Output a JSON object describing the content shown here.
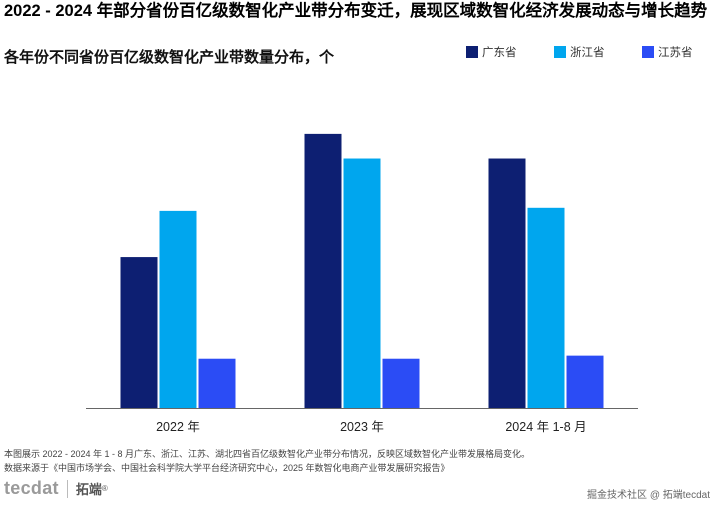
{
  "title": "2022 - 2024 年部分省份百亿级数智化产业带分布变迁，展现区域数智化经济发展动态与增长趋势",
  "subtitle": "各年份不同省份百亿级数智化产业带数量分布，个",
  "notes": {
    "line1": "本图展示 2022 - 2024 年 1 - 8 月广东、浙江、江苏、湖北四省百亿级数智化产业带分布情况，反映区域数智化产业带发展格局变化。",
    "line2": "数据来源于《中国市场学会、中国社会科学院大学平台经济研究中心，2025 年数智化电商产业带发展研究报告》"
  },
  "logo": {
    "text": "tecdat",
    "cn": "拓端",
    "reg": "®"
  },
  "watermark": "掘金技术社区 @ 拓端tecdat",
  "colors": {
    "guangdong": "#0d1f72",
    "zhejiang": "#00a6ee",
    "jiangsu": "#2b4cf5"
  },
  "chart_data": {
    "type": "bar",
    "categories": [
      "2022 年",
      "2023 年",
      "2024 年 1-8 月"
    ],
    "series": [
      {
        "name": "广东省",
        "values": [
          49,
          89,
          81
        ]
      },
      {
        "name": "浙江省",
        "values": [
          64,
          81,
          65
        ]
      },
      {
        "name": "江苏省",
        "values": [
          16,
          16,
          17
        ]
      }
    ],
    "ylim": [
      0,
      100
    ],
    "legend": "top-right",
    "grid": false
  }
}
